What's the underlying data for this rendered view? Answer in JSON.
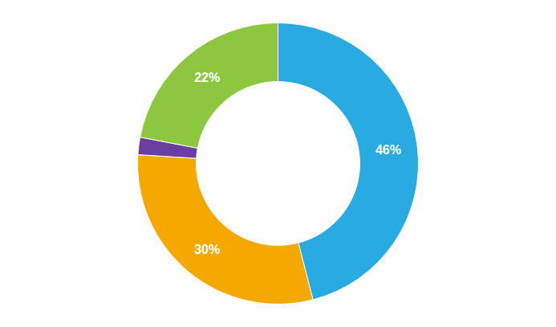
{
  "chart_data": {
    "type": "donut",
    "values": [
      46,
      30,
      2,
      22
    ],
    "value_labels": [
      "46%",
      "30%",
      null,
      "22%"
    ],
    "colors": [
      "#29ABE2",
      "#F5A800",
      "#6B3FA0",
      "#8DC63F"
    ],
    "data_labels": true
  }
}
